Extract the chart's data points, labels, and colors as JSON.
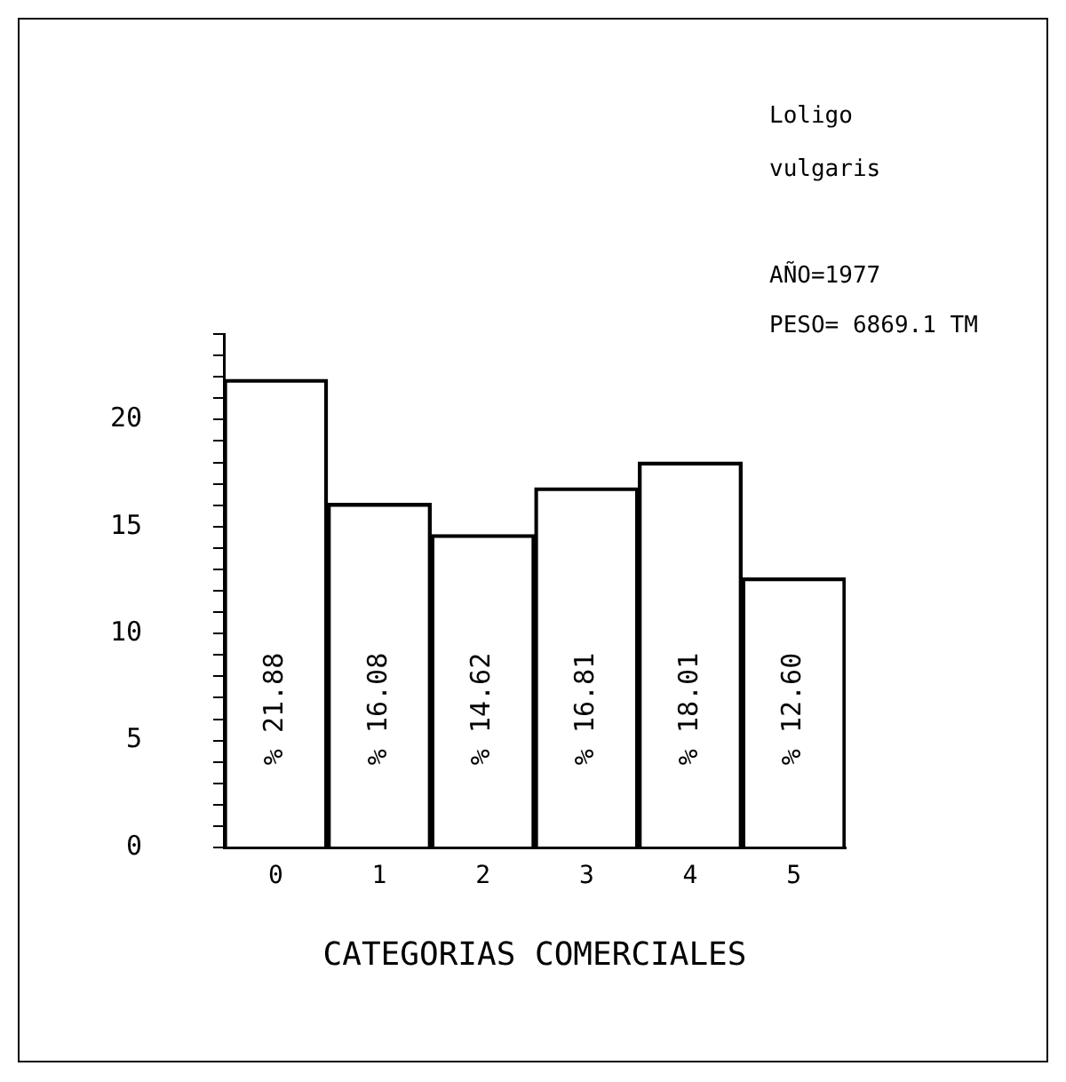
{
  "chart_data": {
    "type": "bar",
    "xlabel": "CATEGORIAS COMERCIALES",
    "annotations": [
      "Loligo vulgaris",
      "AÑO=1977",
      "PESO= 6869.1 TM"
    ],
    "categories": [
      "0",
      "1",
      "2",
      "3",
      "4",
      "5"
    ],
    "values": [
      21.88,
      16.08,
      14.62,
      16.81,
      18.01,
      12.6
    ],
    "value_labels": [
      "% 21.88",
      "% 16.08",
      "% 14.62",
      "% 16.81",
      "% 18.01",
      "% 12.60"
    ],
    "color": "#000000",
    "ylim": [
      0,
      24
    ],
    "yticks": [
      0,
      {
        "value": 1,
        "label": null
      },
      {
        "value": 2,
        "label": null
      },
      {
        "value": 3,
        "label": null
      },
      {
        "value": 4,
        "label": null
      },
      5,
      {
        "value": 6,
        "label": null
      },
      {
        "value": 7,
        "label": null
      },
      {
        "value": 8,
        "label": null
      },
      {
        "value": 9,
        "label": null
      },
      10,
      {
        "value": 11,
        "label": null
      },
      {
        "value": 12,
        "label": null
      },
      {
        "value": 13,
        "label": null
      },
      {
        "value": 14,
        "label": null
      },
      15,
      {
        "value": 16,
        "label": null
      },
      {
        "value": 17,
        "label": null
      },
      {
        "value": 18,
        "label": null
      },
      {
        "value": 19,
        "label": null
      },
      20,
      {
        "value": 21,
        "label": null
      },
      {
        "value": 22,
        "label": null
      },
      {
        "value": 23,
        "label": null
      },
      {
        "value": 24,
        "label": null
      }
    ]
  }
}
